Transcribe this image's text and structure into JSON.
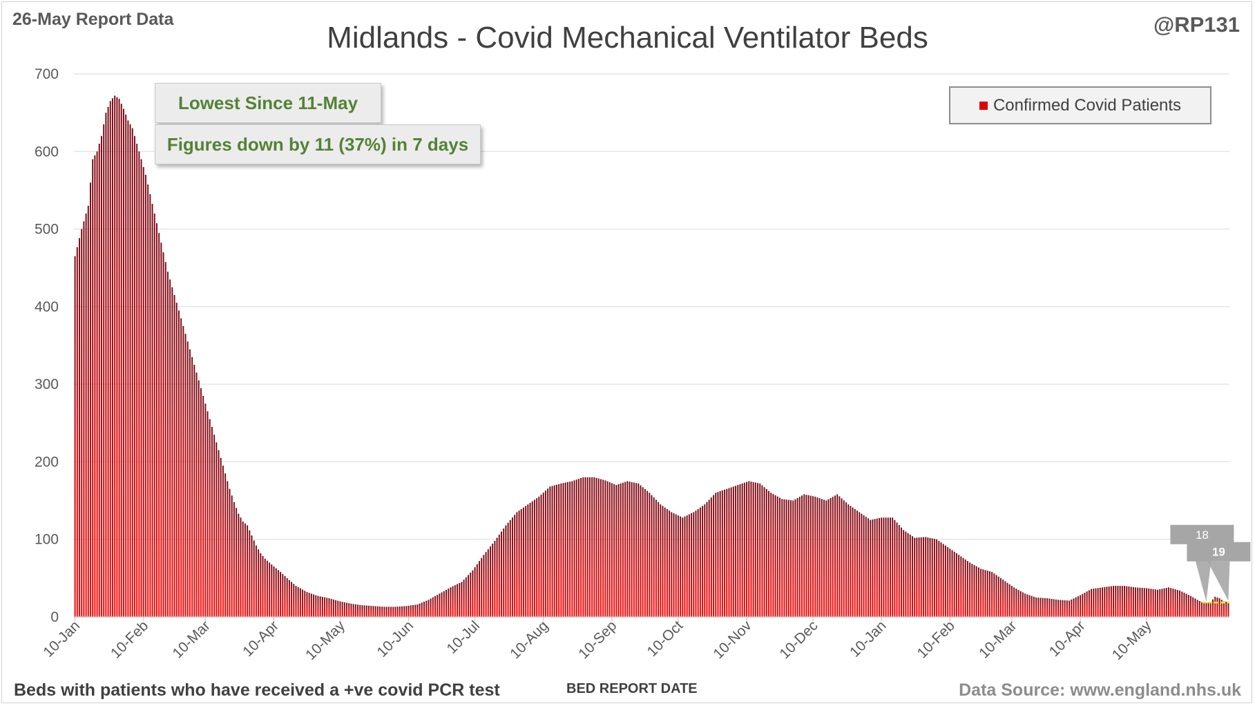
{
  "header": {
    "report_date": "26-May Report Data",
    "handle": "@RP131"
  },
  "callouts": {
    "lowest": "Lowest Since 11-May",
    "change": "Figures down by 11 (37%) in 7 days"
  },
  "footer": {
    "note": "Beds with patients who have received a +ve covid PCR test",
    "source": "Data Source: www.england.nhs.uk"
  },
  "colors": {
    "bar_dark": "#7b0b16",
    "bar_light": "#ff0000",
    "legend_red": "#e00000",
    "callout_text": "#548235",
    "gridline": "#d9d9d9",
    "data_label_bg": "#a6a6a6",
    "recent_avg_line": "#ffe600"
  },
  "chart_data": {
    "type": "bar",
    "title": "Midlands - Covid Mechanical Ventilator Beds",
    "xlabel": "BED REPORT DATE",
    "ylabel": "",
    "ylim": [
      0,
      700
    ],
    "yticks": [
      0,
      100,
      200,
      300,
      400,
      500,
      600,
      700
    ],
    "grid": true,
    "legend_position": "top-right",
    "x_start": "10-Jan",
    "x_end": "26-May",
    "x_step": "1 day",
    "xtick_labels": [
      "10-Jan",
      "10-Feb",
      "10-Mar",
      "10-Apr",
      "10-May",
      "10-Jun",
      "10-Jul",
      "10-Aug",
      "10-Sep",
      "10-Oct",
      "10-Nov",
      "10-Dec",
      "10-Jan",
      "10-Feb",
      "10-Mar",
      "10-Apr",
      "10-May"
    ],
    "xtick_day_index": [
      0,
      31,
      59,
      90,
      120,
      151,
      181,
      212,
      243,
      273,
      304,
      334,
      365,
      396,
      424,
      455,
      485
    ],
    "series": [
      {
        "name": "Confirmed Covid Patients",
        "anchors": [
          [
            0,
            465
          ],
          [
            3,
            500
          ],
          [
            6,
            530
          ],
          [
            8,
            590
          ],
          [
            10,
            600
          ],
          [
            12,
            620
          ],
          [
            14,
            650
          ],
          [
            16,
            665
          ],
          [
            18,
            672
          ],
          [
            20,
            668
          ],
          [
            22,
            655
          ],
          [
            24,
            640
          ],
          [
            26,
            630
          ],
          [
            28,
            610
          ],
          [
            30,
            590
          ],
          [
            32,
            570
          ],
          [
            34,
            545
          ],
          [
            36,
            520
          ],
          [
            38,
            495
          ],
          [
            40,
            470
          ],
          [
            42,
            445
          ],
          [
            44,
            425
          ],
          [
            46,
            405
          ],
          [
            48,
            385
          ],
          [
            50,
            365
          ],
          [
            52,
            345
          ],
          [
            54,
            325
          ],
          [
            56,
            305
          ],
          [
            58,
            285
          ],
          [
            60,
            265
          ],
          [
            62,
            245
          ],
          [
            64,
            225
          ],
          [
            66,
            205
          ],
          [
            68,
            185
          ],
          [
            70,
            165
          ],
          [
            72,
            148
          ],
          [
            74,
            133
          ],
          [
            76,
            123
          ],
          [
            78,
            118
          ],
          [
            80,
            105
          ],
          [
            82,
            92
          ],
          [
            84,
            82
          ],
          [
            86,
            75
          ],
          [
            88,
            70
          ],
          [
            90,
            65
          ],
          [
            93,
            58
          ],
          [
            96,
            50
          ],
          [
            100,
            40
          ],
          [
            105,
            32
          ],
          [
            110,
            27
          ],
          [
            115,
            24
          ],
          [
            120,
            20
          ],
          [
            125,
            17
          ],
          [
            130,
            15
          ],
          [
            135,
            14
          ],
          [
            140,
            13
          ],
          [
            145,
            13
          ],
          [
            150,
            14
          ],
          [
            155,
            16
          ],
          [
            160,
            22
          ],
          [
            165,
            30
          ],
          [
            170,
            38
          ],
          [
            175,
            45
          ],
          [
            180,
            60
          ],
          [
            185,
            80
          ],
          [
            190,
            98
          ],
          [
            195,
            118
          ],
          [
            200,
            135
          ],
          [
            205,
            145
          ],
          [
            210,
            155
          ],
          [
            215,
            168
          ],
          [
            220,
            172
          ],
          [
            225,
            175
          ],
          [
            230,
            180
          ],
          [
            235,
            180
          ],
          [
            240,
            176
          ],
          [
            245,
            170
          ],
          [
            250,
            175
          ],
          [
            255,
            172
          ],
          [
            260,
            160
          ],
          [
            265,
            145
          ],
          [
            270,
            135
          ],
          [
            275,
            128
          ],
          [
            280,
            135
          ],
          [
            285,
            145
          ],
          [
            290,
            160
          ],
          [
            295,
            165
          ],
          [
            300,
            170
          ],
          [
            305,
            175
          ],
          [
            310,
            172
          ],
          [
            315,
            160
          ],
          [
            320,
            152
          ],
          [
            325,
            150
          ],
          [
            330,
            158
          ],
          [
            335,
            155
          ],
          [
            340,
            150
          ],
          [
            345,
            158
          ],
          [
            350,
            145
          ],
          [
            355,
            135
          ],
          [
            360,
            125
          ],
          [
            365,
            128
          ],
          [
            370,
            128
          ],
          [
            375,
            112
          ],
          [
            380,
            102
          ],
          [
            385,
            103
          ],
          [
            390,
            100
          ],
          [
            395,
            90
          ],
          [
            400,
            80
          ],
          [
            405,
            70
          ],
          [
            410,
            62
          ],
          [
            415,
            58
          ],
          [
            420,
            48
          ],
          [
            425,
            38
          ],
          [
            430,
            30
          ],
          [
            435,
            25
          ],
          [
            440,
            24
          ],
          [
            445,
            22
          ],
          [
            450,
            21
          ],
          [
            455,
            28
          ],
          [
            460,
            36
          ],
          [
            465,
            38
          ],
          [
            470,
            40
          ],
          [
            475,
            40
          ],
          [
            480,
            38
          ],
          [
            485,
            37
          ],
          [
            490,
            35
          ],
          [
            495,
            38
          ],
          [
            500,
            34
          ],
          [
            505,
            27
          ],
          [
            508,
            22
          ],
          [
            510,
            19
          ],
          [
            512,
            18
          ],
          [
            514,
            19
          ],
          [
            516,
            26
          ],
          [
            518,
            24
          ],
          [
            520,
            20
          ],
          [
            522,
            19
          ]
        ]
      }
    ],
    "annotations": [
      {
        "label": "18",
        "day_index": 512,
        "value": 18
      },
      {
        "label": "19",
        "day_index": 522,
        "value": 19
      }
    ]
  }
}
